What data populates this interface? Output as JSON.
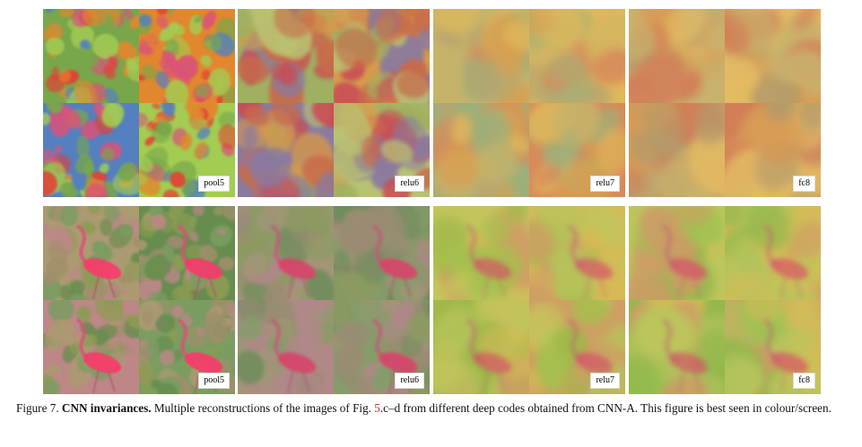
{
  "figure": {
    "rows": [
      {
        "subject": "texture",
        "panels": [
          {
            "label": "pool5",
            "palette": [
              "#c25a78",
              "#7fa35c",
              "#d08a45",
              "#5d7fb0",
              "#a8c86a",
              "#c7463e"
            ]
          },
          {
            "label": "relu6",
            "palette": [
              "#c86a4a",
              "#9fb061",
              "#d59a4c",
              "#8a7aa0",
              "#b9c272",
              "#c94c55"
            ]
          },
          {
            "label": "relu7",
            "palette": [
              "#d7a052",
              "#c6b36a",
              "#e0b85a",
              "#9cb07a",
              "#d98a5a",
              "#b8a46e"
            ]
          },
          {
            "label": "fc8",
            "palette": [
              "#d89c55",
              "#c9b26c",
              "#e3bb63",
              "#b59a6a",
              "#d27f58",
              "#c2ac74"
            ]
          }
        ]
      },
      {
        "subject": "flamingo",
        "panels": [
          {
            "label": "pool5",
            "palette": [
              "#8e9a62",
              "#a89a7b",
              "#6d8a5a",
              "#b38a8a",
              "#7f9a6c",
              "#9d8f74"
            ]
          },
          {
            "label": "relu6",
            "palette": [
              "#8c9b62",
              "#a49579",
              "#728d5d",
              "#b08888",
              "#869d6b",
              "#9a8c72"
            ]
          },
          {
            "label": "relu7",
            "palette": [
              "#a6c04d",
              "#c3c55c",
              "#d7b957",
              "#9fb84a",
              "#cf9e64",
              "#b7c45a"
            ]
          },
          {
            "label": "fc8",
            "palette": [
              "#9cc451",
              "#bcc65b",
              "#d4bc58",
              "#93b84c",
              "#cd9c66",
              "#b2c35c"
            ]
          }
        ]
      }
    ]
  },
  "caption": {
    "prefix": "Figure 7.",
    "title": "CNN invariances.",
    "text_before_ref": "Multiple reconstructions of the images of Fig.",
    "ref": "5",
    "text_after_ref": ".c–d from different deep codes obtained from CNN-A. This figure is best seen in colour/screen."
  }
}
